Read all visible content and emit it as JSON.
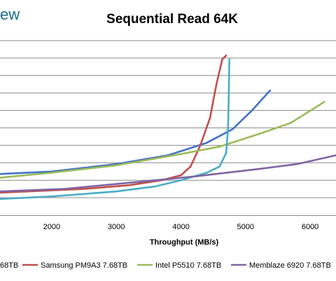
{
  "brand_fragment": "ew",
  "chart_data": {
    "type": "line",
    "title": "Sequential Read 64K",
    "xlabel": "Throughput (MB/s)",
    "ylabel": "",
    "xlim": [
      1200,
      6400
    ],
    "ylim": [
      0,
      14
    ],
    "x_ticks": [
      2000,
      3000,
      4000,
      5000,
      6000
    ],
    "grid": "horizontal",
    "legend_position": "bottom",
    "series": [
      {
        "name": "",
        "legend_fragment": "68TB",
        "color": "#4472c4",
        "points": [
          [
            1200,
            3.3
          ],
          [
            2000,
            3.5
          ],
          [
            3000,
            4.1
          ],
          [
            3800,
            4.8
          ],
          [
            4400,
            5.8
          ],
          [
            4800,
            6.9
          ],
          [
            5100,
            8.4
          ],
          [
            5380,
            10.0
          ]
        ]
      },
      {
        "name": "Samsung PM9A3 7.68TB",
        "color": "#c0504d",
        "points": [
          [
            1200,
            1.8
          ],
          [
            2500,
            2.1
          ],
          [
            3200,
            2.4
          ],
          [
            3700,
            2.8
          ],
          [
            4000,
            3.2
          ],
          [
            4150,
            3.9
          ],
          [
            4300,
            5.6
          ],
          [
            4450,
            7.8
          ],
          [
            4550,
            10.5
          ],
          [
            4640,
            12.5
          ],
          [
            4700,
            12.8
          ]
        ]
      },
      {
        "name": "Intel P5510 7.68TB",
        "color": "#9bbb59",
        "points": [
          [
            1200,
            3.0
          ],
          [
            2000,
            3.4
          ],
          [
            3000,
            4.0
          ],
          [
            4000,
            4.9
          ],
          [
            4600,
            5.5
          ],
          [
            5200,
            6.5
          ],
          [
            5700,
            7.4
          ],
          [
            6100,
            8.7
          ],
          [
            6220,
            9.1
          ]
        ]
      },
      {
        "name": "",
        "color": "#4bacc6",
        "points": [
          [
            1200,
            1.3
          ],
          [
            2000,
            1.5
          ],
          [
            3000,
            1.9
          ],
          [
            3600,
            2.3
          ],
          [
            4000,
            2.8
          ],
          [
            4400,
            3.4
          ],
          [
            4600,
            3.9
          ],
          [
            4700,
            5.0
          ],
          [
            4730,
            7.0
          ],
          [
            4740,
            9.5
          ],
          [
            4750,
            12.5
          ]
        ]
      },
      {
        "name": "Memblaze 6920 7.68TB",
        "color": "#8064a2",
        "points": [
          [
            1200,
            1.9
          ],
          [
            2200,
            2.1
          ],
          [
            3200,
            2.6
          ],
          [
            4200,
            3.1
          ],
          [
            5200,
            3.7
          ],
          [
            5800,
            4.1
          ],
          [
            6400,
            4.8
          ]
        ]
      }
    ]
  }
}
